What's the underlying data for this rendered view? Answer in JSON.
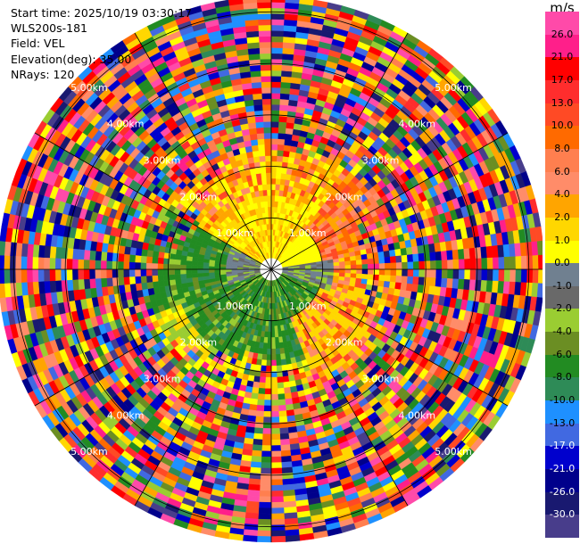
{
  "header": {
    "start_time": "Start time: 2025/10/19 03:30:17",
    "site": "WLS200s-181",
    "field": "Field: VEL",
    "elevation": "Elevation(deg): 35.00",
    "nrays": "NRays: 120"
  },
  "colorbar": {
    "unit": "m/s",
    "colors": [
      "#ff4aa9",
      "#ff1f8a",
      "#ff0000",
      "#ff2d2d",
      "#ff4a25",
      "#ff6a00",
      "#ff7f4f",
      "#ff8c69",
      "#ffa500",
      "#ffd700",
      "#ffff00",
      "#708090",
      "#696969",
      "#9acd32",
      "#6b8e23",
      "#228b22",
      "#2e8b57",
      "#1e90ff",
      "#4169e1",
      "#0000cd",
      "#00008b",
      "#191970",
      "#483d8b"
    ],
    "labels": [
      "26.0",
      "21.0",
      "17.0",
      "13.0",
      "10.0",
      "8.0",
      "6.0",
      "4.0",
      "2.0",
      "1.0",
      "0.0",
      "-1.0",
      "-2.0",
      "-4.0",
      "-6.0",
      "-8.0",
      "-10.0",
      "-13.0",
      "-17.0",
      "-21.0",
      "-26.0",
      "-30.0"
    ]
  },
  "chart_data": {
    "type": "heatmap",
    "title": "",
    "field": "VEL",
    "units": "m/s",
    "n_rays": 120,
    "elevation_deg": 35.0,
    "value_range": [
      -30.0,
      26.0
    ],
    "range_ring_labels": [
      "1.00km",
      "2.00km",
      "3.00km",
      "4.00km",
      "5.00km"
    ],
    "range_max_km": 5.3,
    "sectors": [
      {
        "region": "north",
        "range_km": [
          0.3,
          2.2
        ],
        "velocity_ms": [
          1.0,
          6.0
        ]
      },
      {
        "region": "south",
        "range_km": [
          0.3,
          2.2
        ],
        "velocity_ms": [
          -8.0,
          -2.0
        ]
      },
      {
        "region": "east",
        "range_km": [
          0.3,
          1.3
        ],
        "velocity_ms": [
          -1.0,
          0.0
        ]
      },
      {
        "region": "outer",
        "range_km": [
          2.5,
          5.3
        ],
        "velocity_ms": [
          -30.0,
          26.0
        ]
      }
    ]
  }
}
